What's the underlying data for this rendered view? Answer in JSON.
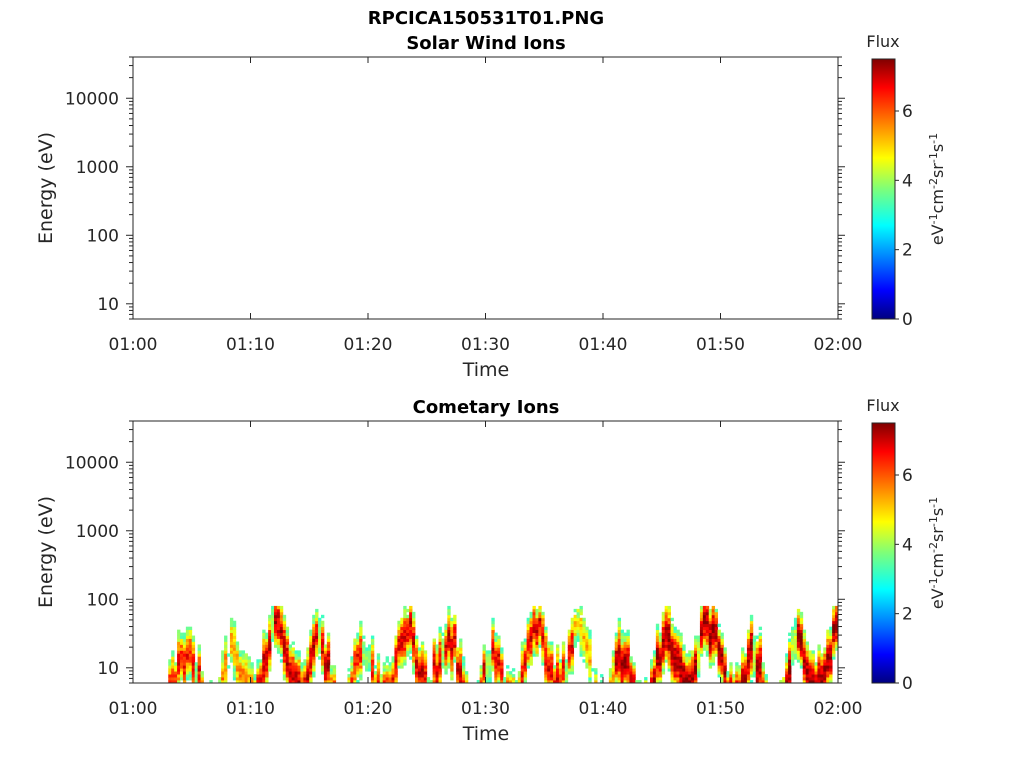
{
  "figure_title": "RPCICA150531T01.PNG",
  "chart_data": [
    {
      "type": "heatmap",
      "title": "Solar Wind Ions",
      "xlabel": "Time",
      "ylabel": "Energy (eV)",
      "x_tick_labels": [
        "01:00",
        "01:10",
        "01:20",
        "01:30",
        "01:40",
        "01:50",
        "02:00"
      ],
      "x_range_minutes": [
        0,
        60
      ],
      "y_scale": "log",
      "y_tick_values": [
        10,
        100,
        1000,
        10000
      ],
      "y_tick_labels": [
        "10",
        "100",
        "1000",
        "10000"
      ],
      "ylim": [
        6,
        40000
      ],
      "colorbar": {
        "title": "Flux",
        "units": "eV-1cm-2sr-1s-1",
        "range": [
          0,
          7.5
        ],
        "ticks": [
          "0",
          "2",
          "4",
          "6"
        ],
        "colormap": "jet"
      },
      "data": []
    },
    {
      "type": "heatmap",
      "title": "Cometary Ions",
      "xlabel": "Time",
      "ylabel": "Energy (eV)",
      "x_tick_labels": [
        "01:00",
        "01:10",
        "01:20",
        "01:30",
        "01:40",
        "01:50",
        "02:00"
      ],
      "x_range_minutes": [
        0,
        60
      ],
      "y_scale": "log",
      "y_tick_values": [
        10,
        100,
        1000,
        10000
      ],
      "y_tick_labels": [
        "10",
        "100",
        "1000",
        "10000"
      ],
      "ylim": [
        6,
        40000
      ],
      "colorbar": {
        "title": "Flux",
        "units": "eV-1cm-2sr-1s-1",
        "range": [
          0,
          7.5
        ],
        "ticks": [
          "0",
          "2",
          "4",
          "6"
        ],
        "colormap": "jet"
      },
      "energy_upper_cutoff_eV": 80,
      "data_start_minute": 2.6,
      "activity_segments_minutes": [
        {
          "start": 2.6,
          "end": 7.0,
          "peak_flux": 6.5
        },
        {
          "start": 7.0,
          "end": 10.0,
          "peak_flux": 5.5
        },
        {
          "start": 10.0,
          "end": 17.0,
          "peak_flux": 7.0
        },
        {
          "start": 17.0,
          "end": 22.0,
          "peak_flux": 6.5
        },
        {
          "start": 22.0,
          "end": 27.0,
          "peak_flux": 6.8
        },
        {
          "start": 27.0,
          "end": 32.0,
          "peak_flux": 6.8
        },
        {
          "start": 32.0,
          "end": 37.5,
          "peak_flux": 6.8
        },
        {
          "start": 37.5,
          "end": 41.0,
          "peak_flux": 5.2
        },
        {
          "start": 41.0,
          "end": 60.0,
          "peak_flux": 7.3
        }
      ]
    }
  ]
}
